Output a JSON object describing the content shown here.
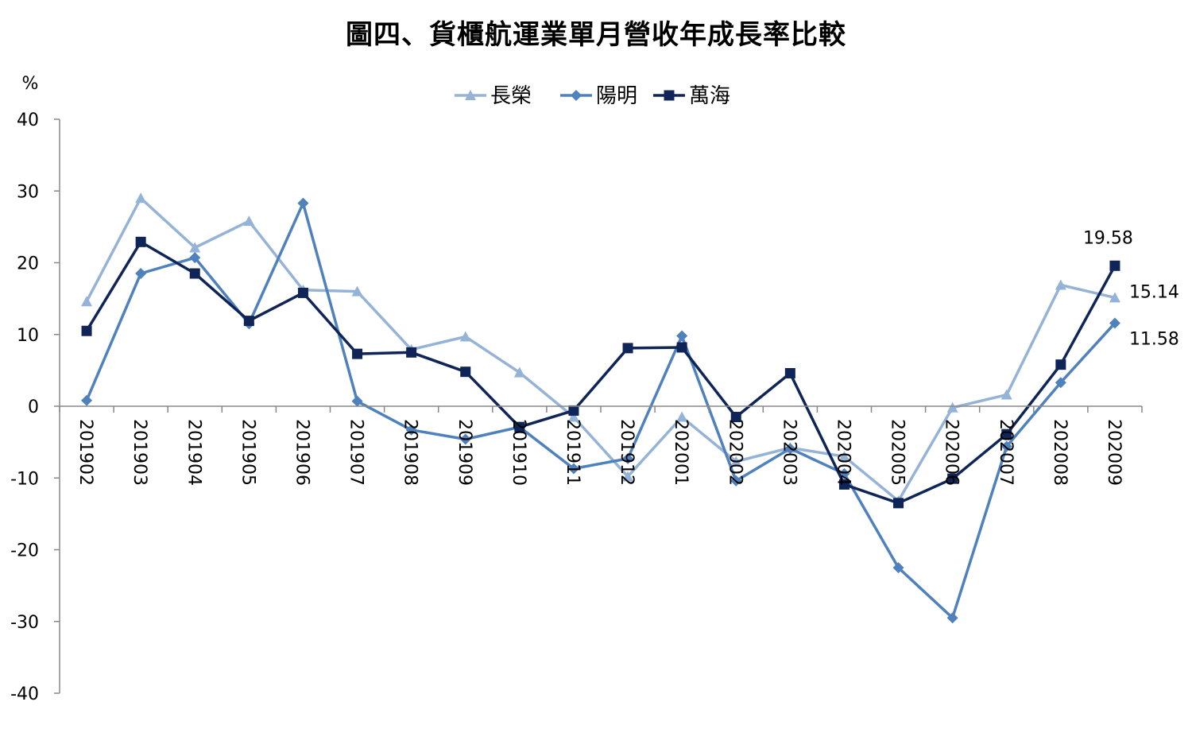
{
  "chart_data": {
    "type": "line",
    "title": "圖四、貨櫃航運業單月營收年成長率比較",
    "ylabel": "%",
    "xlabel": "",
    "ylim": [
      -40,
      40
    ],
    "yticks": [
      40,
      30,
      20,
      10,
      0,
      -10,
      -20,
      -30,
      -40
    ],
    "grid": false,
    "legend_position": "top-center",
    "categories": [
      "201902",
      "201903",
      "201904",
      "201905",
      "201906",
      "201907",
      "201908",
      "201909",
      "201910",
      "201911",
      "201912",
      "202001",
      "202002",
      "202003",
      "202004",
      "202005",
      "202006",
      "202007",
      "202008",
      "202009"
    ],
    "series": [
      {
        "name": "長榮",
        "color": "#95B3D7",
        "marker": "triangle",
        "values": [
          14.6,
          29.0,
          22.1,
          25.8,
          16.2,
          16.0,
          7.9,
          9.7,
          4.7,
          -1.5,
          -9.8,
          -1.5,
          -7.7,
          -5.8,
          -7.0,
          -13.2,
          -0.2,
          1.6,
          16.9,
          15.14
        ]
      },
      {
        "name": "陽明",
        "color": "#4F81BD",
        "marker": "diamond",
        "values": [
          0.8,
          18.5,
          20.7,
          11.5,
          28.3,
          0.7,
          -3.3,
          -4.6,
          -2.9,
          -8.7,
          -7.3,
          9.8,
          -10.4,
          -5.9,
          -9.4,
          -22.5,
          -29.5,
          -5.6,
          3.3,
          11.58
        ]
      },
      {
        "name": "萬海",
        "color": "#0F2557",
        "marker": "square",
        "values": [
          10.5,
          22.9,
          18.5,
          11.9,
          15.8,
          7.3,
          7.5,
          4.8,
          -2.9,
          -0.6,
          8.1,
          8.2,
          -1.5,
          4.6,
          -10.9,
          -13.5,
          -10.1,
          -3.9,
          5.8,
          19.58
        ]
      }
    ],
    "data_labels": [
      {
        "series": "萬海",
        "text": "19.58"
      },
      {
        "series": "長榮",
        "text": "15.14"
      },
      {
        "series": "陽明",
        "text": "11.58"
      }
    ]
  }
}
